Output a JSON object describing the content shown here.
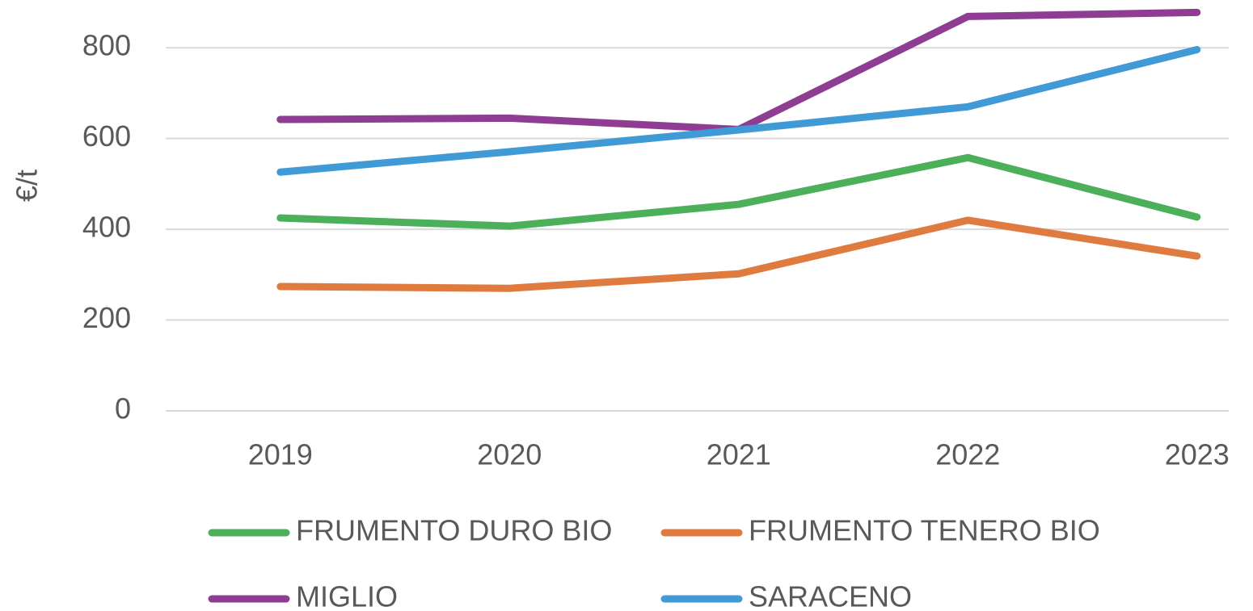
{
  "chart_data": {
    "type": "line",
    "y_label": "€/t",
    "categories": [
      "2019",
      "2020",
      "2021",
      "2022",
      "2023"
    ],
    "series": [
      {
        "name": "FRUMENTO DURO BIO",
        "color": "#4caf5a",
        "values": [
          425,
          407,
          455,
          558,
          427
        ]
      },
      {
        "name": "FRUMENTO TENERO BIO",
        "color": "#e07b3f",
        "values": [
          274,
          270,
          302,
          420,
          341
        ]
      },
      {
        "name": "MIGLIO",
        "color": "#8e3d93",
        "values": [
          642,
          645,
          620,
          869,
          878
        ]
      },
      {
        "name": "SARACENO",
        "color": "#3f9ad6",
        "values": [
          526,
          571,
          619,
          670,
          796
        ]
      }
    ],
    "ylim": [
      0,
      900
    ],
    "yticks": [
      0,
      200,
      400,
      600,
      800
    ],
    "grid": true,
    "legend": "bottom"
  }
}
